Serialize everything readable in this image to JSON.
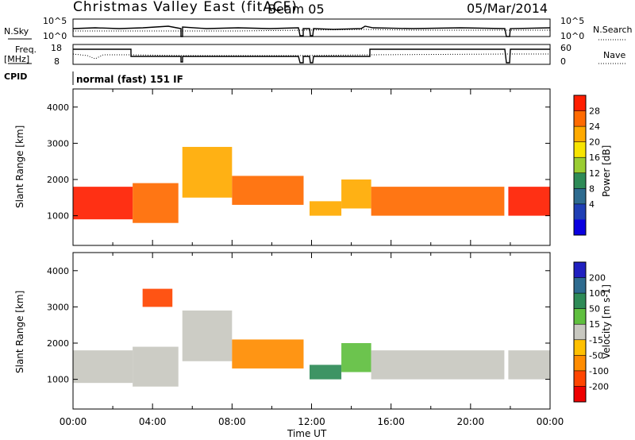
{
  "header": {
    "title": "Christmas Valley East (fitACF)",
    "beam": "Beam 05",
    "date": "05/Mar/2014"
  },
  "strips": {
    "nsky_label": "N.Sky",
    "nsearch_label": "N.Search",
    "count_ticks": [
      "10^5",
      "10^0"
    ],
    "freq_label_1": "Freq.",
    "freq_label_2": "[MHz]",
    "freq_ticks": [
      "18",
      "8"
    ],
    "nave_label": "Nave",
    "nave_ticks": [
      "60",
      "0"
    ],
    "cpid_label": "CPID",
    "cpid_value": "normal (fast) 151 IF"
  },
  "x_axis": {
    "label": "Time UT",
    "ticks": [
      "00:00",
      "04:00",
      "08:00",
      "12:00",
      "16:00",
      "20:00",
      "00:00"
    ]
  },
  "power_colorbar": {
    "title": "Power [dB]",
    "ticks": [
      "28",
      "24",
      "20",
      "16",
      "12",
      "8",
      "4"
    ],
    "colors": [
      "#ff1e00",
      "#ff6a00",
      "#ffaa00",
      "#f7e400",
      "#9acd32",
      "#2e8b57",
      "#2e6b8f",
      "#1f3fb5",
      "#0a00e0"
    ]
  },
  "velocity_colorbar": {
    "title": "Velocity [m s-1]",
    "ticks": [
      "200",
      "100",
      "50",
      "15",
      "-15",
      "-50",
      "-100",
      "-200"
    ],
    "colors": [
      "#2020c0",
      "#2e6b8f",
      "#2e8b57",
      "#5fbf3f",
      "#c8c8c0",
      "#ffc000",
      "#ff8c00",
      "#ff4500",
      "#ee0000"
    ]
  },
  "chart_data": [
    {
      "type": "heatmap",
      "name": "power",
      "xlabel": "Time UT",
      "ylabel": "Slant Range [km]",
      "y_ticks": [
        "4000",
        "3000",
        "2000",
        "1000"
      ],
      "xlim": [
        0,
        24
      ],
      "ylim": [
        180,
        4500
      ],
      "units": "dB",
      "bands": [
        {
          "t0": 0.0,
          "t1": 3.0,
          "r0": 900,
          "r1": 1800,
          "level": 28
        },
        {
          "t0": 3.0,
          "t1": 5.3,
          "r0": 800,
          "r1": 1900,
          "level": 24
        },
        {
          "t0": 5.5,
          "t1": 8.0,
          "r0": 1500,
          "r1": 2900,
          "level": 20
        },
        {
          "t0": 8.0,
          "t1": 11.6,
          "r0": 1300,
          "r1": 2100,
          "level": 24
        },
        {
          "t0": 11.9,
          "t1": 13.5,
          "r0": 1000,
          "r1": 1400,
          "level": 20
        },
        {
          "t0": 13.5,
          "t1": 15.0,
          "r0": 1200,
          "r1": 2000,
          "level": 20
        },
        {
          "t0": 15.0,
          "t1": 21.7,
          "r0": 1000,
          "r1": 1800,
          "level": 24
        },
        {
          "t0": 21.9,
          "t1": 24.0,
          "r0": 1000,
          "r1": 1800,
          "level": 28
        }
      ]
    },
    {
      "type": "heatmap",
      "name": "velocity",
      "xlabel": "Time UT",
      "ylabel": "Slant Range [km]",
      "y_ticks": [
        "4000",
        "3000",
        "2000",
        "1000"
      ],
      "xlim": [
        0,
        24
      ],
      "ylim": [
        180,
        4500
      ],
      "units": "m s-1",
      "bands": [
        {
          "t0": 0.0,
          "t1": 3.0,
          "r0": 900,
          "r1": 1800,
          "level": 0
        },
        {
          "t0": 3.0,
          "t1": 5.3,
          "r0": 800,
          "r1": 1900,
          "level": 0
        },
        {
          "t0": 3.5,
          "t1": 5.0,
          "r0": 3000,
          "r1": 3500,
          "level": -100
        },
        {
          "t0": 5.5,
          "t1": 8.0,
          "r0": 1500,
          "r1": 2900,
          "level": 0
        },
        {
          "t0": 8.0,
          "t1": 11.6,
          "r0": 1300,
          "r1": 2100,
          "level": -60
        },
        {
          "t0": 11.9,
          "t1": 13.5,
          "r0": 1000,
          "r1": 1400,
          "level": 40
        },
        {
          "t0": 13.5,
          "t1": 15.0,
          "r0": 1200,
          "r1": 2000,
          "level": 30
        },
        {
          "t0": 15.0,
          "t1": 21.7,
          "r0": 1000,
          "r1": 1800,
          "level": 0
        },
        {
          "t0": 21.9,
          "t1": 24.0,
          "r0": 1000,
          "r1": 1800,
          "level": 0
        }
      ]
    }
  ]
}
